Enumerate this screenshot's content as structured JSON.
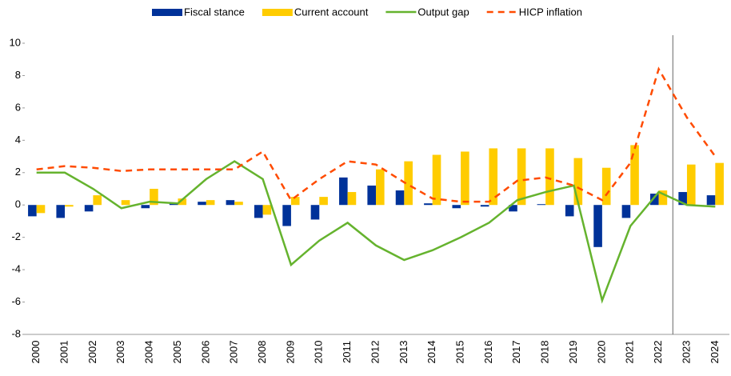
{
  "chart_data": {
    "type": "bar-line",
    "categories": [
      "2000",
      "2001",
      "2002",
      "2003",
      "2004",
      "2005",
      "2006",
      "2007",
      "2008",
      "2009",
      "2010",
      "2011",
      "2012",
      "2013",
      "2014",
      "2015",
      "2016",
      "2017",
      "2018",
      "2019",
      "2020",
      "2021",
      "2022",
      "2023",
      "2024"
    ],
    "series": [
      {
        "name": "Fiscal stance",
        "type": "bar",
        "color": "#003299",
        "values": [
          -0.7,
          -0.8,
          -0.4,
          0,
          -0.2,
          0.1,
          0.2,
          0.3,
          -0.8,
          -1.3,
          -0.9,
          1.7,
          1.2,
          0.9,
          0.1,
          -0.2,
          -0.1,
          -0.4,
          0.05,
          -0.7,
          -2.6,
          -0.8,
          0.7,
          0.8,
          0.6
        ]
      },
      {
        "name": "Current account",
        "type": "bar",
        "color": "#ffcc00",
        "values": [
          -0.5,
          -0.1,
          0.6,
          0.3,
          1.0,
          0.4,
          0.3,
          0.2,
          -0.6,
          0.5,
          0.5,
          0.8,
          2.2,
          2.7,
          3.1,
          3.3,
          3.5,
          3.5,
          3.5,
          2.9,
          2.3,
          3.7,
          0.9,
          2.5,
          2.6
        ]
      },
      {
        "name": "Output gap",
        "type": "line",
        "color": "#65b32e",
        "values": [
          2.0,
          2.0,
          1.0,
          -0.2,
          0.2,
          0.1,
          1.6,
          2.7,
          1.6,
          -3.7,
          -2.2,
          -1.1,
          -2.5,
          -3.4,
          -2.8,
          -2.0,
          -1.1,
          0.3,
          0.8,
          1.2,
          -5.9,
          -1.3,
          0.8,
          0.0,
          -0.1
        ]
      },
      {
        "name": "HICP inflation",
        "type": "dashed-line",
        "color": "#ff4b00",
        "values": [
          2.2,
          2.4,
          2.3,
          2.1,
          2.2,
          2.2,
          2.2,
          2.2,
          3.3,
          0.3,
          1.6,
          2.7,
          2.5,
          1.4,
          0.4,
          0.2,
          0.2,
          1.5,
          1.7,
          1.2,
          0.3,
          2.6,
          8.4,
          5.4,
          3.0
        ]
      }
    ],
    "ylim": [
      -8,
      10
    ],
    "yticks": [
      -8,
      -6,
      -4,
      -2,
      0,
      2,
      4,
      6,
      8,
      10
    ]
  }
}
